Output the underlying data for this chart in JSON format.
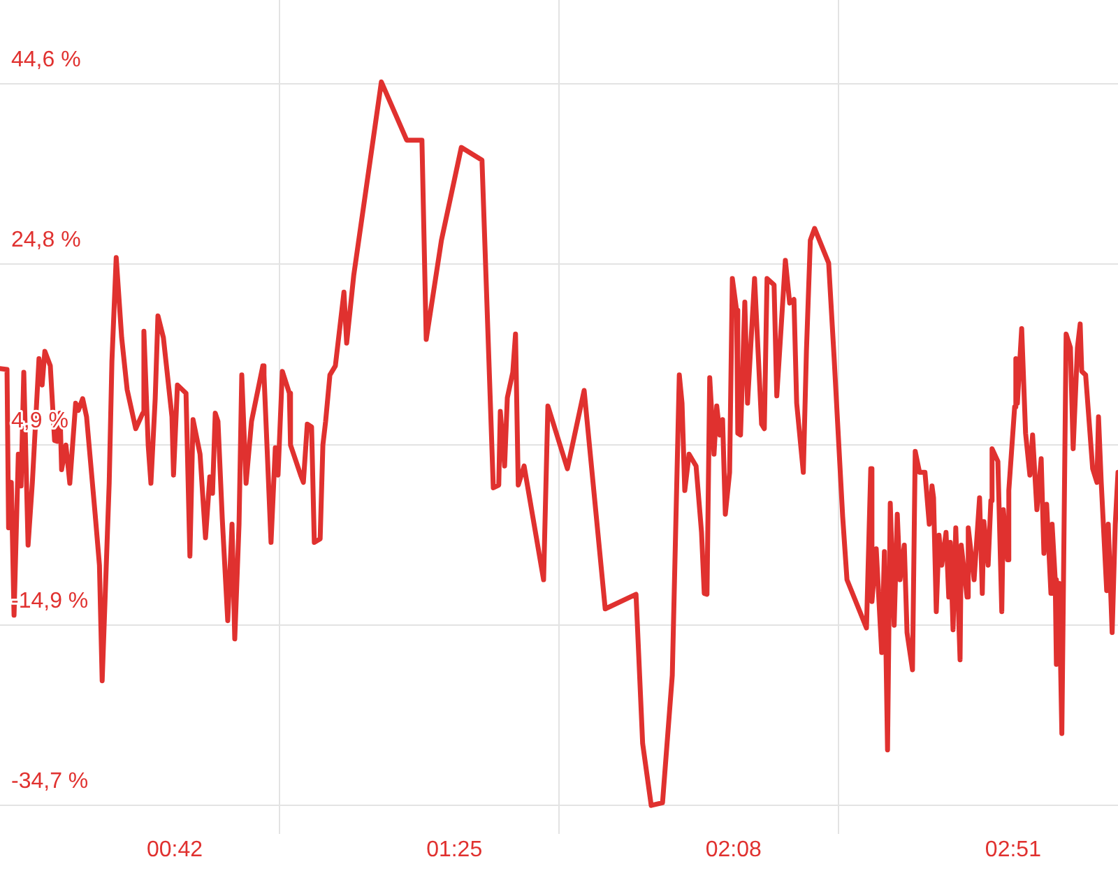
{
  "chart_data": {
    "type": "line",
    "marker": "none",
    "grid": true,
    "xlim": [
      0.252,
      3.119
    ],
    "xticks": [
      {
        "value": 0.7,
        "label": "00:42"
      },
      {
        "value": 0.969,
        "label": null
      },
      {
        "value": 1.417,
        "label": "01:25"
      },
      {
        "value": 1.685,
        "label": null
      },
      {
        "value": 2.133,
        "label": "02:08"
      },
      {
        "value": 2.402,
        "label": null
      },
      {
        "value": 2.85,
        "label": "02:51"
      }
    ],
    "ylim": [
      -37.8,
      53.8
    ],
    "yticks": [
      {
        "value": -34.7,
        "label": "-34,7 %"
      },
      {
        "value": -14.9,
        "label": "-14,9 %"
      },
      {
        "value": 4.9,
        "label": "4,9 %"
      },
      {
        "value": 24.8,
        "label": "24,8 %"
      },
      {
        "value": 44.6,
        "label": "44,6 %"
      }
    ],
    "series": [
      {
        "color": "#e0312f",
        "x": [
          0.252,
          0.27,
          0.274,
          0.281,
          0.288,
          0.299,
          0.306,
          0.313,
          0.324,
          0.335,
          0.352,
          0.36,
          0.367,
          0.381,
          0.392,
          0.399,
          0.406,
          0.41,
          0.421,
          0.431,
          0.446,
          0.453,
          0.464,
          0.474,
          0.496,
          0.507,
          0.514,
          0.532,
          0.539,
          0.55,
          0.564,
          0.578,
          0.6,
          0.618,
          0.621,
          0.632,
          0.639,
          0.65,
          0.657,
          0.671,
          0.693,
          0.697,
          0.707,
          0.729,
          0.739,
          0.747,
          0.765,
          0.779,
          0.79,
          0.797,
          0.804,
          0.811,
          0.822,
          0.836,
          0.847,
          0.854,
          0.865,
          0.872,
          0.883,
          0.897,
          0.926,
          0.929,
          0.937,
          0.947,
          0.958,
          0.965,
          0.976,
          0.994,
          0.997,
          1.023,
          1.03,
          1.04,
          1.051,
          1.058,
          1.073,
          1.08,
          1.087,
          1.098,
          1.112,
          1.134,
          1.141,
          1.159,
          1.23,
          1.295,
          1.334,
          1.345,
          1.384,
          1.435,
          1.488,
          1.517,
          1.531,
          1.535,
          1.546,
          1.553,
          1.567,
          1.574,
          1.581,
          1.596,
          1.646,
          1.657,
          1.707,
          1.75,
          1.804,
          1.883,
          1.9,
          1.922,
          1.951,
          1.976,
          1.994,
          2.001,
          2.008,
          2.019,
          2.037,
          2.051,
          2.058,
          2.065,
          2.072,
          2.083,
          2.09,
          2.098,
          2.105,
          2.112,
          2.123,
          2.13,
          2.141,
          2.144,
          2.151,
          2.162,
          2.169,
          2.187,
          2.205,
          2.212,
          2.219,
          2.237,
          2.244,
          2.266,
          2.277,
          2.288,
          2.295,
          2.312,
          2.32,
          2.33,
          2.341,
          2.377,
          2.391,
          2.413,
          2.424,
          2.474,
          2.485,
          2.488,
          2.499,
          2.513,
          2.52,
          2.528,
          2.535,
          2.545,
          2.553,
          2.56,
          2.571,
          2.578,
          2.592,
          2.599,
          2.61,
          2.624,
          2.635,
          2.642,
          2.646,
          2.653,
          2.66,
          2.667,
          2.678,
          2.685,
          2.689,
          2.696,
          2.703,
          2.714,
          2.717,
          2.732,
          2.735,
          2.75,
          2.764,
          2.771,
          2.775,
          2.786,
          2.793,
          2.796,
          2.811,
          2.821,
          2.825,
          2.836,
          2.839,
          2.854,
          2.857,
          2.861,
          2.872,
          2.882,
          2.893,
          2.9,
          2.911,
          2.922,
          2.929,
          2.936,
          2.947,
          2.95,
          2.958,
          2.961,
          2.968,
          2.975,
          2.986,
          2.997,
          3.004,
          3.015,
          3.022,
          3.026,
          3.036,
          3.054,
          3.065,
          3.069,
          3.076,
          3.09,
          3.094,
          3.104,
          3.112,
          3.119
        ],
        "values": [
          13.3,
          13.2,
          -4.2,
          0.8,
          -13.8,
          3.9,
          0.4,
          12.9,
          -6.1,
          0.8,
          14.4,
          11.5,
          15.2,
          13.6,
          5.4,
          5.3,
          8.4,
          2.2,
          4.9,
          0.7,
          9.5,
          8.7,
          10.0,
          8.0,
          -2.7,
          -8.3,
          -21.0,
          0.7,
          14.1,
          25.5,
          16.7,
          11.0,
          6.7,
          8.4,
          17.4,
          4.9,
          0.7,
          10.0,
          19.1,
          16.7,
          8.0,
          1.6,
          11.5,
          10.6,
          -7.3,
          7.7,
          3.9,
          -5.3,
          1.4,
          -0.4,
          8.4,
          7.5,
          -3.2,
          -14.4,
          -3.8,
          -16.4,
          -3.8,
          12.6,
          0.7,
          7.5,
          13.6,
          12.6,
          4.5,
          -5.8,
          4.6,
          1.6,
          13.0,
          10.6,
          4.9,
          1.6,
          0.8,
          7.2,
          6.9,
          -5.8,
          -5.4,
          4.9,
          7.5,
          12.6,
          13.6,
          21.7,
          16.1,
          23.5,
          44.8,
          38.4,
          38.4,
          16.5,
          27.4,
          37.6,
          36.2,
          0.2,
          0.5,
          8.6,
          2.6,
          10.1,
          12.9,
          17.1,
          0.5,
          2.6,
          -9.9,
          9.2,
          2.3,
          10.9,
          -13.1,
          -11.5,
          -27.9,
          -34.7,
          -34.4,
          -20.4,
          12.6,
          9.5,
          -0.1,
          3.9,
          2.6,
          -4.7,
          -11.4,
          -11.5,
          12.3,
          3.9,
          9.2,
          6.0,
          7.7,
          -2.7,
          1.9,
          23.2,
          19.7,
          6.2,
          6.0,
          20.6,
          9.5,
          23.2,
          7.2,
          6.7,
          23.2,
          22.5,
          10.3,
          25.2,
          20.5,
          20.9,
          9.5,
          1.9,
          15.2,
          27.4,
          28.7,
          24.9,
          14.5,
          -3.0,
          -9.9,
          -15.2,
          2.3,
          -12.3,
          -6.5,
          -17.9,
          -6.8,
          -28.6,
          -1.5,
          -14.9,
          -2.7,
          -9.9,
          -6.1,
          -15.7,
          -19.8,
          4.2,
          1.9,
          1.9,
          -3.8,
          0.4,
          -0.9,
          -13.4,
          -5.0,
          -8.3,
          -4.7,
          -11.8,
          -5.8,
          -15.4,
          -4.2,
          -18.7,
          -6.1,
          -11.8,
          -4.2,
          -9.9,
          -0.9,
          -11.4,
          -3.5,
          -8.3,
          -1.2,
          4.5,
          3.1,
          -13.4,
          -2.2,
          -7.7,
          -0.1,
          9.1,
          14.4,
          9.5,
          17.7,
          6.2,
          1.6,
          6.0,
          -2.2,
          3.4,
          -7.0,
          -1.6,
          -11.4,
          -3.8,
          -9.9,
          -19.2,
          -10.3,
          -26.8,
          17.1,
          15.6,
          4.5,
          15.6,
          18.2,
          13.0,
          12.6,
          2.3,
          0.8,
          8.0,
          0.8,
          -11.1,
          -3.8,
          -15.7,
          -3.8,
          1.9
        ]
      }
    ]
  }
}
